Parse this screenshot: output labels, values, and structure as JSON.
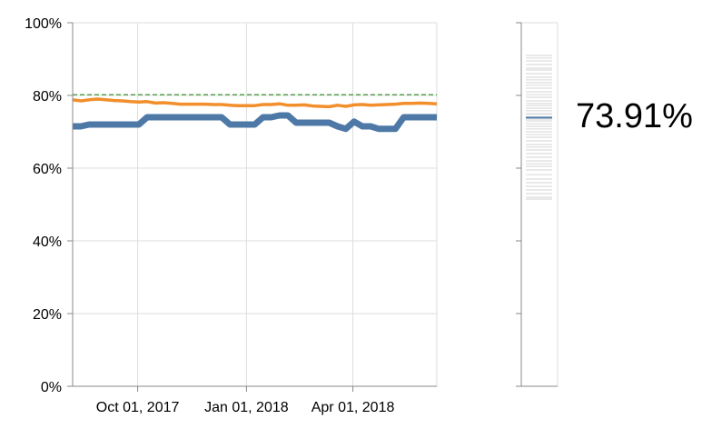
{
  "chart_data": [
    {
      "type": "line",
      "title": "",
      "xlabel": "",
      "ylabel": "",
      "ylim": [
        0,
        100
      ],
      "y_ticks": [
        "0%",
        "20%",
        "40%",
        "60%",
        "80%",
        "100%"
      ],
      "x_range": [
        "2017-08-07",
        "2018-06-11"
      ],
      "x_ticks": [
        {
          "date": "2017-10-01",
          "label": "Oct 01, 2017"
        },
        {
          "date": "2018-01-01",
          "label": "Jan 01, 2018"
        },
        {
          "date": "2018-04-01",
          "label": "Apr 01, 2018"
        }
      ],
      "grid": true,
      "reference_line": {
        "value": 80.2,
        "color": "#59a14f",
        "style": "dashed"
      },
      "series": [
        {
          "color": "#4e79a7",
          "points": [
            [
              "2017-08-07",
              71.5
            ],
            [
              "2017-08-14",
              71.5
            ],
            [
              "2017-08-21",
              72.0
            ],
            [
              "2017-08-28",
              72.0
            ],
            [
              "2017-09-04",
              72.0
            ],
            [
              "2017-09-11",
              72.0
            ],
            [
              "2017-09-18",
              72.0
            ],
            [
              "2017-09-25",
              72.0
            ],
            [
              "2017-10-02",
              72.0
            ],
            [
              "2017-10-09",
              74.0
            ],
            [
              "2017-10-16",
              74.0
            ],
            [
              "2017-10-23",
              74.0
            ],
            [
              "2017-10-30",
              74.0
            ],
            [
              "2017-11-06",
              74.0
            ],
            [
              "2017-11-13",
              74.0
            ],
            [
              "2017-11-20",
              74.0
            ],
            [
              "2017-11-27",
              74.0
            ],
            [
              "2017-12-04",
              74.0
            ],
            [
              "2017-12-11",
              74.0
            ],
            [
              "2017-12-18",
              72.0
            ],
            [
              "2017-12-25",
              72.0
            ],
            [
              "2018-01-01",
              72.0
            ],
            [
              "2018-01-08",
              72.0
            ],
            [
              "2018-01-15",
              74.0
            ],
            [
              "2018-01-22",
              74.0
            ],
            [
              "2018-01-29",
              74.5
            ],
            [
              "2018-02-05",
              74.5
            ],
            [
              "2018-02-12",
              72.5
            ],
            [
              "2018-02-19",
              72.5
            ],
            [
              "2018-02-26",
              72.5
            ],
            [
              "2018-03-05",
              72.5
            ],
            [
              "2018-03-12",
              72.5
            ],
            [
              "2018-03-19",
              71.5
            ],
            [
              "2018-03-26",
              70.8
            ],
            [
              "2018-04-02",
              72.8
            ],
            [
              "2018-04-09",
              71.5
            ],
            [
              "2018-04-16",
              71.5
            ],
            [
              "2018-04-23",
              70.8
            ],
            [
              "2018-04-30",
              70.8
            ],
            [
              "2018-05-07",
              70.8
            ],
            [
              "2018-05-14",
              74.0
            ],
            [
              "2018-05-21",
              74.0
            ],
            [
              "2018-05-28",
              74.0
            ],
            [
              "2018-06-04",
              74.0
            ],
            [
              "2018-06-11",
              74.0
            ]
          ]
        },
        {
          "color": "#f28e2b",
          "points": [
            [
              "2017-08-07",
              78.8
            ],
            [
              "2017-08-14",
              78.5
            ],
            [
              "2017-08-21",
              78.8
            ],
            [
              "2017-08-28",
              79.0
            ],
            [
              "2017-09-04",
              78.8
            ],
            [
              "2017-09-11",
              78.6
            ],
            [
              "2017-09-18",
              78.5
            ],
            [
              "2017-09-25",
              78.3
            ],
            [
              "2017-10-02",
              78.2
            ],
            [
              "2017-10-09",
              78.3
            ],
            [
              "2017-10-16",
              77.9
            ],
            [
              "2017-10-23",
              78.0
            ],
            [
              "2017-10-30",
              77.8
            ],
            [
              "2017-11-06",
              77.6
            ],
            [
              "2017-11-13",
              77.6
            ],
            [
              "2017-11-20",
              77.6
            ],
            [
              "2017-11-27",
              77.6
            ],
            [
              "2017-12-04",
              77.5
            ],
            [
              "2017-12-11",
              77.5
            ],
            [
              "2017-12-18",
              77.3
            ],
            [
              "2017-12-25",
              77.2
            ],
            [
              "2018-01-01",
              77.2
            ],
            [
              "2018-01-08",
              77.2
            ],
            [
              "2018-01-15",
              77.5
            ],
            [
              "2018-01-22",
              77.5
            ],
            [
              "2018-01-29",
              77.7
            ],
            [
              "2018-02-05",
              77.3
            ],
            [
              "2018-02-12",
              77.3
            ],
            [
              "2018-02-19",
              77.4
            ],
            [
              "2018-02-26",
              77.1
            ],
            [
              "2018-03-05",
              77.0
            ],
            [
              "2018-03-12",
              76.9
            ],
            [
              "2018-03-19",
              77.3
            ],
            [
              "2018-03-26",
              77.0
            ],
            [
              "2018-04-02",
              77.4
            ],
            [
              "2018-04-09",
              77.5
            ],
            [
              "2018-04-16",
              77.3
            ],
            [
              "2018-04-23",
              77.4
            ],
            [
              "2018-04-30",
              77.5
            ],
            [
              "2018-05-07",
              77.6
            ],
            [
              "2018-05-14",
              77.8
            ],
            [
              "2018-05-21",
              77.8
            ],
            [
              "2018-05-28",
              77.9
            ],
            [
              "2018-06-04",
              77.8
            ],
            [
              "2018-06-11",
              77.7
            ]
          ]
        }
      ]
    },
    {
      "type": "strip",
      "title": "",
      "ylim": [
        0,
        100
      ],
      "strip_color": "#e2e2e2",
      "highlight_color": "#4e79a7",
      "strip_values": [
        91.0,
        90.3,
        89.5,
        88.5,
        87.5,
        87.0,
        86.0,
        85.0,
        84.3,
        83.5,
        82.8,
        82.0,
        81.0,
        80.2,
        79.5,
        78.5,
        77.8,
        77.2,
        76.5,
        75.8,
        75.0,
        74.8,
        73.5,
        73.0,
        72.2,
        71.5,
        70.8,
        70.0,
        69.2,
        68.5,
        67.5,
        66.5,
        65.8,
        65.0,
        64.0,
        63.0,
        62.0,
        61.2,
        60.5,
        59.5,
        58.2,
        57.0,
        56.0,
        55.0,
        54.0,
        53.0,
        52.0,
        51.5
      ],
      "highlight_value": 73.91,
      "value_label": "73.91%"
    }
  ]
}
